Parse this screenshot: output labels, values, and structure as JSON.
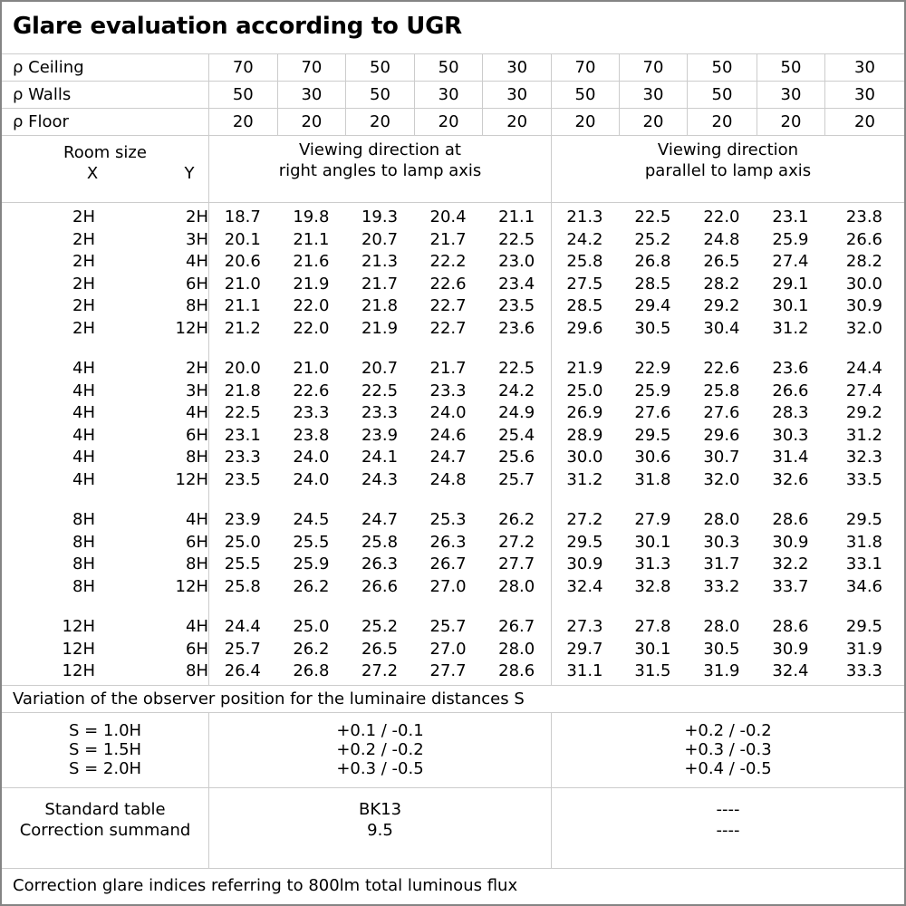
{
  "title": "Glare evaluation according to UGR",
  "colors": {
    "grid_line": "#cccccc",
    "outer_border": "#848484",
    "background": "#ffffff",
    "text": "#000000"
  },
  "reflectance_rows": [
    {
      "label": "ρ Ceiling",
      "values": [
        "70",
        "70",
        "50",
        "50",
        "30",
        "70",
        "70",
        "50",
        "50",
        "30"
      ]
    },
    {
      "label": "ρ Walls",
      "values": [
        "50",
        "30",
        "50",
        "30",
        "30",
        "50",
        "30",
        "50",
        "30",
        "30"
      ]
    },
    {
      "label": "ρ Floor",
      "values": [
        "20",
        "20",
        "20",
        "20",
        "20",
        "20",
        "20",
        "20",
        "20",
        "20"
      ]
    }
  ],
  "header": {
    "room_size_label": "Room size",
    "x_label": "X",
    "y_label": "Y",
    "group1_line1": "Viewing direction at",
    "group1_line2": "right angles to lamp axis",
    "group2_line1": "Viewing direction",
    "group2_line2": "parallel to lamp axis"
  },
  "ugr_groups": [
    {
      "rows": [
        {
          "x": "2H",
          "y": "2H",
          "values": [
            "18.7",
            "19.8",
            "19.3",
            "20.4",
            "21.1",
            "21.3",
            "22.5",
            "22.0",
            "23.1",
            "23.8"
          ]
        },
        {
          "x": "2H",
          "y": "3H",
          "values": [
            "20.1",
            "21.1",
            "20.7",
            "21.7",
            "22.5",
            "24.2",
            "25.2",
            "24.8",
            "25.9",
            "26.6"
          ]
        },
        {
          "x": "2H",
          "y": "4H",
          "values": [
            "20.6",
            "21.6",
            "21.3",
            "22.2",
            "23.0",
            "25.8",
            "26.8",
            "26.5",
            "27.4",
            "28.2"
          ]
        },
        {
          "x": "2H",
          "y": "6H",
          "values": [
            "21.0",
            "21.9",
            "21.7",
            "22.6",
            "23.4",
            "27.5",
            "28.5",
            "28.2",
            "29.1",
            "30.0"
          ]
        },
        {
          "x": "2H",
          "y": "8H",
          "values": [
            "21.1",
            "22.0",
            "21.8",
            "22.7",
            "23.5",
            "28.5",
            "29.4",
            "29.2",
            "30.1",
            "30.9"
          ]
        },
        {
          "x": "2H",
          "y": "12H",
          "values": [
            "21.2",
            "22.0",
            "21.9",
            "22.7",
            "23.6",
            "29.6",
            "30.5",
            "30.4",
            "31.2",
            "32.0"
          ]
        }
      ]
    },
    {
      "rows": [
        {
          "x": "4H",
          "y": "2H",
          "values": [
            "20.0",
            "21.0",
            "20.7",
            "21.7",
            "22.5",
            "21.9",
            "22.9",
            "22.6",
            "23.6",
            "24.4"
          ]
        },
        {
          "x": "4H",
          "y": "3H",
          "values": [
            "21.8",
            "22.6",
            "22.5",
            "23.3",
            "24.2",
            "25.0",
            "25.9",
            "25.8",
            "26.6",
            "27.4"
          ]
        },
        {
          "x": "4H",
          "y": "4H",
          "values": [
            "22.5",
            "23.3",
            "23.3",
            "24.0",
            "24.9",
            "26.9",
            "27.6",
            "27.6",
            "28.3",
            "29.2"
          ]
        },
        {
          "x": "4H",
          "y": "6H",
          "values": [
            "23.1",
            "23.8",
            "23.9",
            "24.6",
            "25.4",
            "28.9",
            "29.5",
            "29.6",
            "30.3",
            "31.2"
          ]
        },
        {
          "x": "4H",
          "y": "8H",
          "values": [
            "23.3",
            "24.0",
            "24.1",
            "24.7",
            "25.6",
            "30.0",
            "30.6",
            "30.7",
            "31.4",
            "32.3"
          ]
        },
        {
          "x": "4H",
          "y": "12H",
          "values": [
            "23.5",
            "24.0",
            "24.3",
            "24.8",
            "25.7",
            "31.2",
            "31.8",
            "32.0",
            "32.6",
            "33.5"
          ]
        }
      ]
    },
    {
      "rows": [
        {
          "x": "8H",
          "y": "4H",
          "values": [
            "23.9",
            "24.5",
            "24.7",
            "25.3",
            "26.2",
            "27.2",
            "27.9",
            "28.0",
            "28.6",
            "29.5"
          ]
        },
        {
          "x": "8H",
          "y": "6H",
          "values": [
            "25.0",
            "25.5",
            "25.8",
            "26.3",
            "27.2",
            "29.5",
            "30.1",
            "30.3",
            "30.9",
            "31.8"
          ]
        },
        {
          "x": "8H",
          "y": "8H",
          "values": [
            "25.5",
            "25.9",
            "26.3",
            "26.7",
            "27.7",
            "30.9",
            "31.3",
            "31.7",
            "32.2",
            "33.1"
          ]
        },
        {
          "x": "8H",
          "y": "12H",
          "values": [
            "25.8",
            "26.2",
            "26.6",
            "27.0",
            "28.0",
            "32.4",
            "32.8",
            "33.2",
            "33.7",
            "34.6"
          ]
        }
      ]
    },
    {
      "rows": [
        {
          "x": "12H",
          "y": "4H",
          "values": [
            "24.4",
            "25.0",
            "25.2",
            "25.7",
            "26.7",
            "27.3",
            "27.8",
            "28.0",
            "28.6",
            "29.5"
          ]
        },
        {
          "x": "12H",
          "y": "6H",
          "values": [
            "25.7",
            "26.2",
            "26.5",
            "27.0",
            "28.0",
            "29.7",
            "30.1",
            "30.5",
            "30.9",
            "31.9"
          ]
        },
        {
          "x": "12H",
          "y": "8H",
          "values": [
            "26.4",
            "26.8",
            "27.2",
            "27.7",
            "28.6",
            "31.1",
            "31.5",
            "31.9",
            "32.4",
            "33.3"
          ]
        }
      ]
    }
  ],
  "variation_note": "Variation of the observer position for the luminaire distances S",
  "s_section": {
    "labels": [
      "S = 1.0H",
      "S = 1.5H",
      "S = 2.0H"
    ],
    "group1": [
      "+0.1 / -0.1",
      "+0.2 / -0.2",
      "+0.3 / -0.5"
    ],
    "group2": [
      "+0.2 / -0.2",
      "+0.3 / -0.3",
      "+0.4 / -0.5"
    ]
  },
  "standard_section": {
    "labels": [
      "Standard table",
      "Correction summand"
    ],
    "group1": [
      "BK13",
      "9.5"
    ],
    "group2": [
      "----",
      "----"
    ]
  },
  "footer_note": "Correction glare indices referring to 800lm total luminous flux"
}
